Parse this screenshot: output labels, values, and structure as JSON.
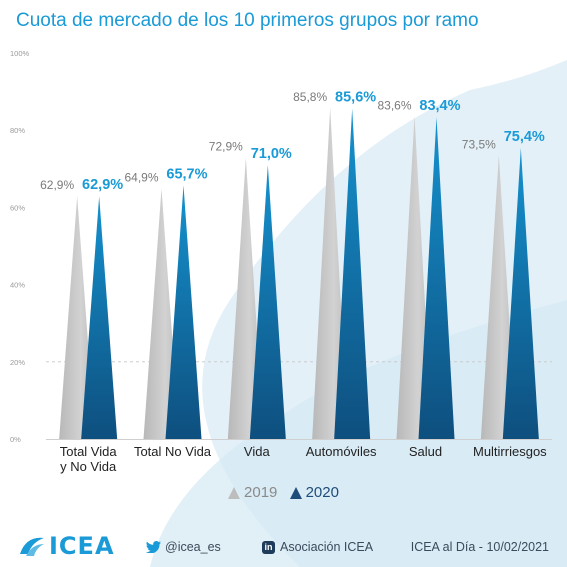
{
  "title": "Cuota de mercado de los 10 primeros grupos por ramo",
  "colors": {
    "s2019": "#c8c8c8",
    "s2020_top": "#1592cf",
    "s2020_bottom": "#0e4f7e",
    "label2019": "#7a7a7a",
    "label2020": "#1a9ad6",
    "grid": "#c7c7c7",
    "tick": "#9a9a9a",
    "decor": "#e3f0f8"
  },
  "chart_data": {
    "type": "bar",
    "categories": [
      [
        "Total Vida",
        "y No Vida"
      ],
      [
        "Total No Vida"
      ],
      [
        "Vida"
      ],
      [
        "Automóviles"
      ],
      [
        "Salud"
      ],
      [
        "Multirriesgos"
      ]
    ],
    "series": [
      {
        "name": "2019",
        "values": [
          62.9,
          64.9,
          72.9,
          85.8,
          83.6,
          73.5
        ],
        "labels": [
          "62,9%",
          "64,9%",
          "72,9%",
          "85,8%",
          "83,6%",
          "73,5%"
        ]
      },
      {
        "name": "2020",
        "values": [
          62.9,
          65.7,
          71.0,
          85.6,
          83.4,
          75.4
        ],
        "labels": [
          "62,9%",
          "65,7%",
          "71,0%",
          "85,6%",
          "83,4%",
          "75,4%"
        ]
      }
    ],
    "y_ticks": [
      "0%",
      "20%",
      "40%",
      "60%",
      "80%",
      "100%"
    ],
    "ylim": [
      0,
      100
    ],
    "grid": "dashed line at 20%",
    "legend_position": "bottom-center",
    "mark_shape": "triangle"
  },
  "legend": {
    "label2019": "2019",
    "label2020": "2020"
  },
  "footer": {
    "logo_text": "ICEA",
    "twitter": "@icea_es",
    "linkedin_badge": "in",
    "linkedin": "Asociación ICEA",
    "date_ref": "ICEA al Día - 10/02/2021"
  }
}
